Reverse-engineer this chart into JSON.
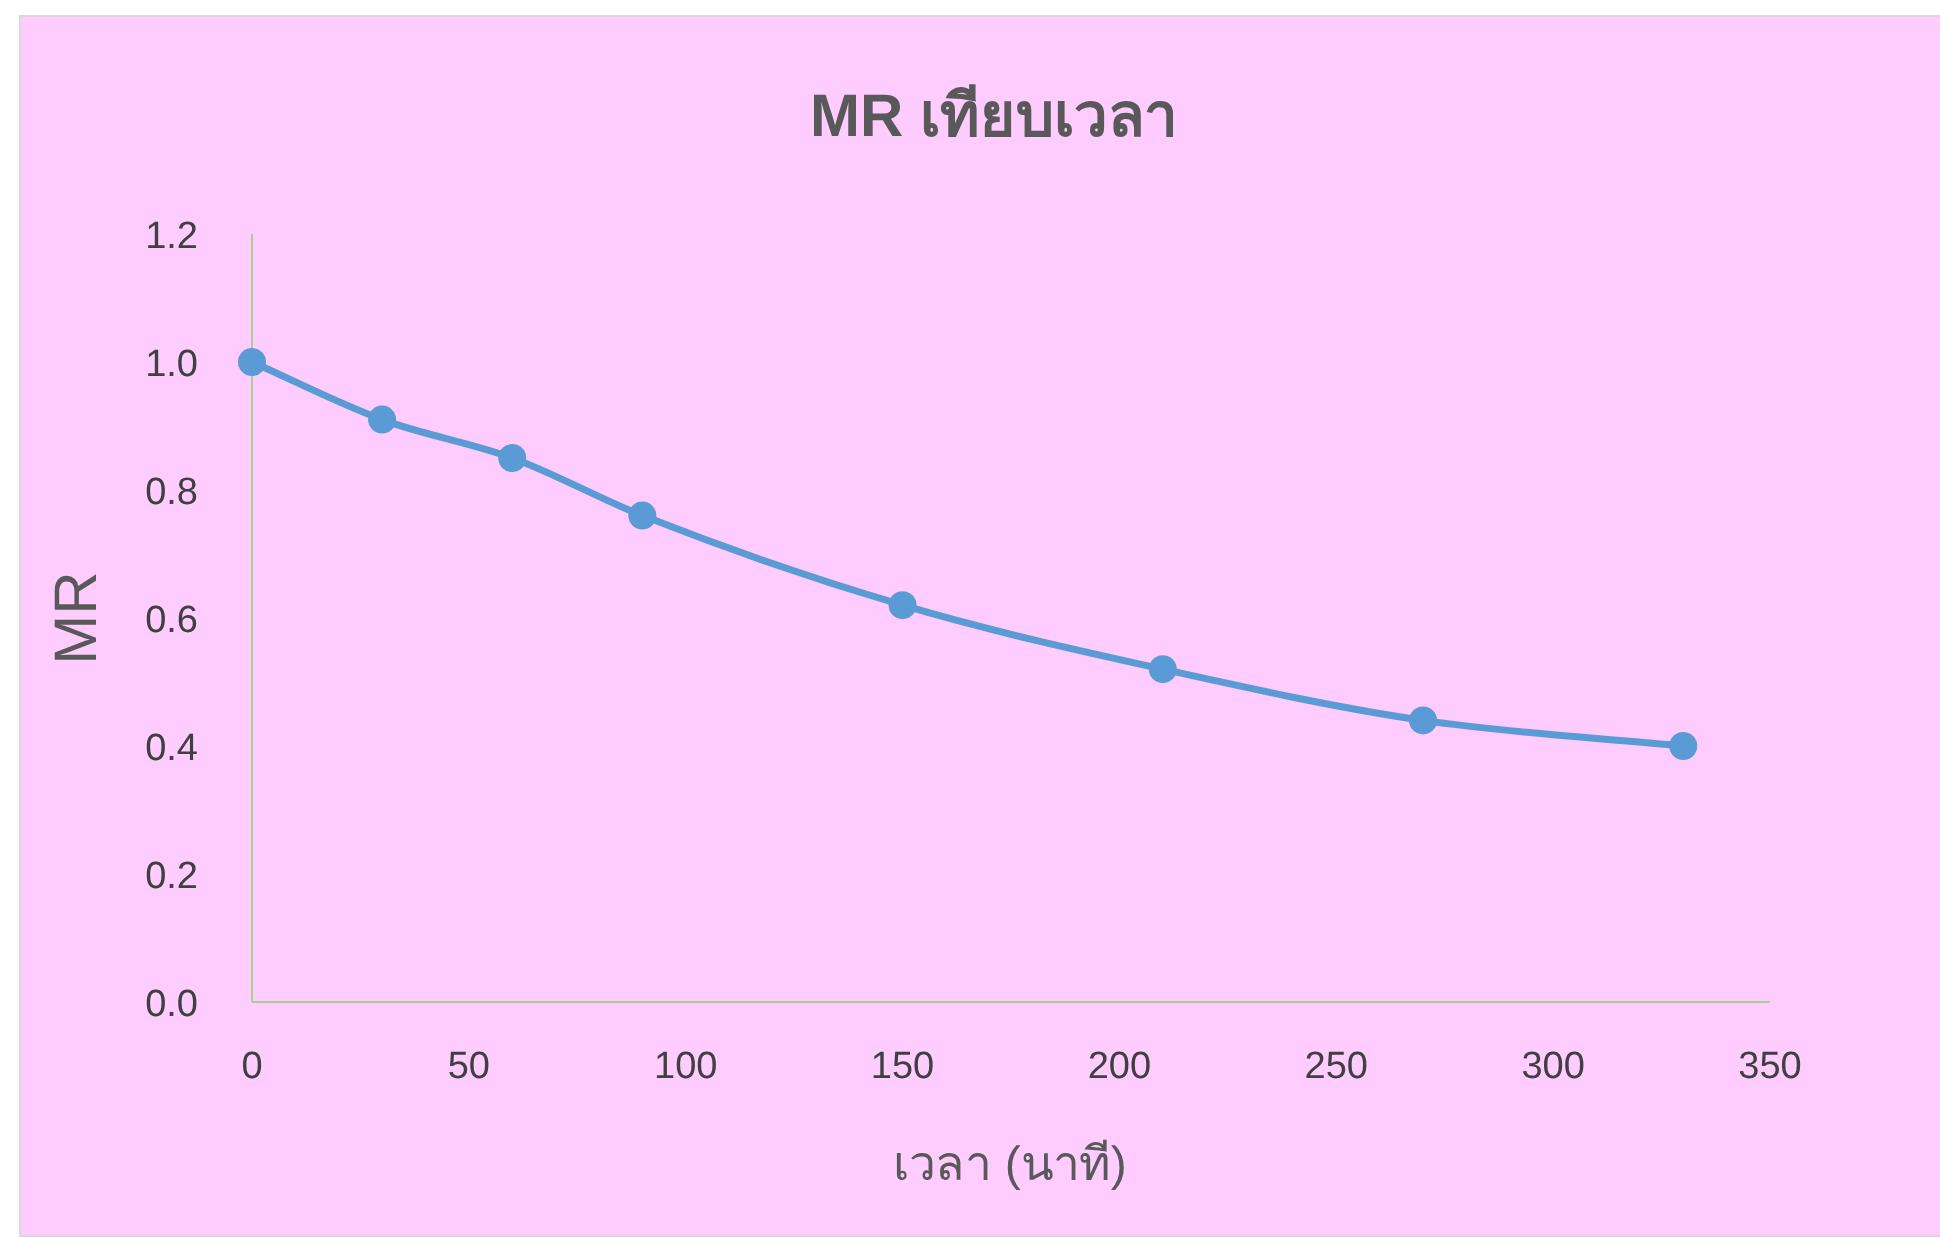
{
  "chart_data": {
    "type": "line",
    "title": "MR เทียบเวลา",
    "xlabel": "เวลา (นาที)",
    "ylabel": "MR",
    "x": [
      0,
      30,
      60,
      90,
      150,
      210,
      270,
      330
    ],
    "series": [
      {
        "color": "#5b9bd5",
        "values": [
          1.0,
          0.91,
          0.85,
          0.76,
          0.62,
          0.52,
          0.44,
          0.4
        ]
      }
    ],
    "xlim": [
      0,
      350
    ],
    "xticks": [
      0,
      50,
      100,
      150,
      200,
      250,
      300,
      350
    ],
    "ylim": [
      0,
      1.2
    ],
    "yticks": [
      {
        "value": 0,
        "label": "0.0"
      },
      {
        "value": 0.2,
        "label": "0.2"
      },
      {
        "value": 0.4,
        "label": "0.4"
      },
      {
        "value": 0.6,
        "label": "0.6"
      },
      {
        "value": 0.8,
        "label": "0.8"
      },
      {
        "value": 1,
        "label": "1.0"
      },
      {
        "value": 1.2,
        "label": "1.2"
      }
    ],
    "marker": "circle",
    "line_style": "solid"
  }
}
